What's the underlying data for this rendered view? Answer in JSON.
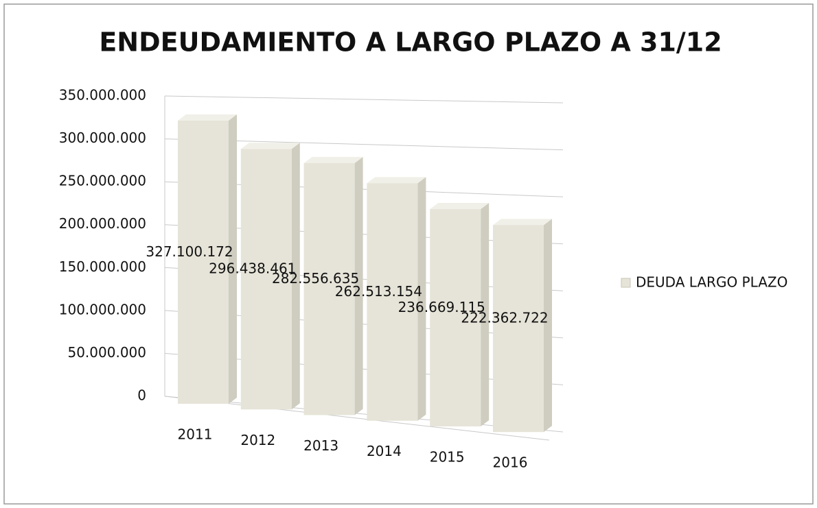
{
  "chart_data": {
    "type": "bar3d",
    "title": "ENDEUDAMIENTO A LARGO PLAZO A 31/12",
    "categories": [
      "2011",
      "2012",
      "2013",
      "2014",
      "2015",
      "2016"
    ],
    "series": [
      {
        "name": "DEUDA LARGO PLAZO",
        "color": "#e6e4d8",
        "values": [
          327100172,
          296438461,
          282556635,
          262513154,
          236669115,
          222362722
        ],
        "value_labels": [
          "327.100.172",
          "296.438.461",
          "282.556.635",
          "262.513.154",
          "236.669.115",
          "222.362.722"
        ]
      }
    ],
    "ylim": [
      0,
      350000000
    ],
    "yticks": [
      0,
      {
        "value": 50000000,
        "label": "50.000.000"
      },
      {
        "value": 100000000,
        "label": "100.000.000"
      },
      {
        "value": 150000000,
        "label": "150.000.000"
      },
      {
        "value": 200000000,
        "label": "200.000.000"
      },
      {
        "value": 250000000,
        "label": "250.000.000"
      },
      {
        "value": 300000000,
        "label": "300.000.000"
      },
      {
        "value": 350000000,
        "label": "350.000.000"
      }
    ],
    "grid": true,
    "legend": "right"
  }
}
